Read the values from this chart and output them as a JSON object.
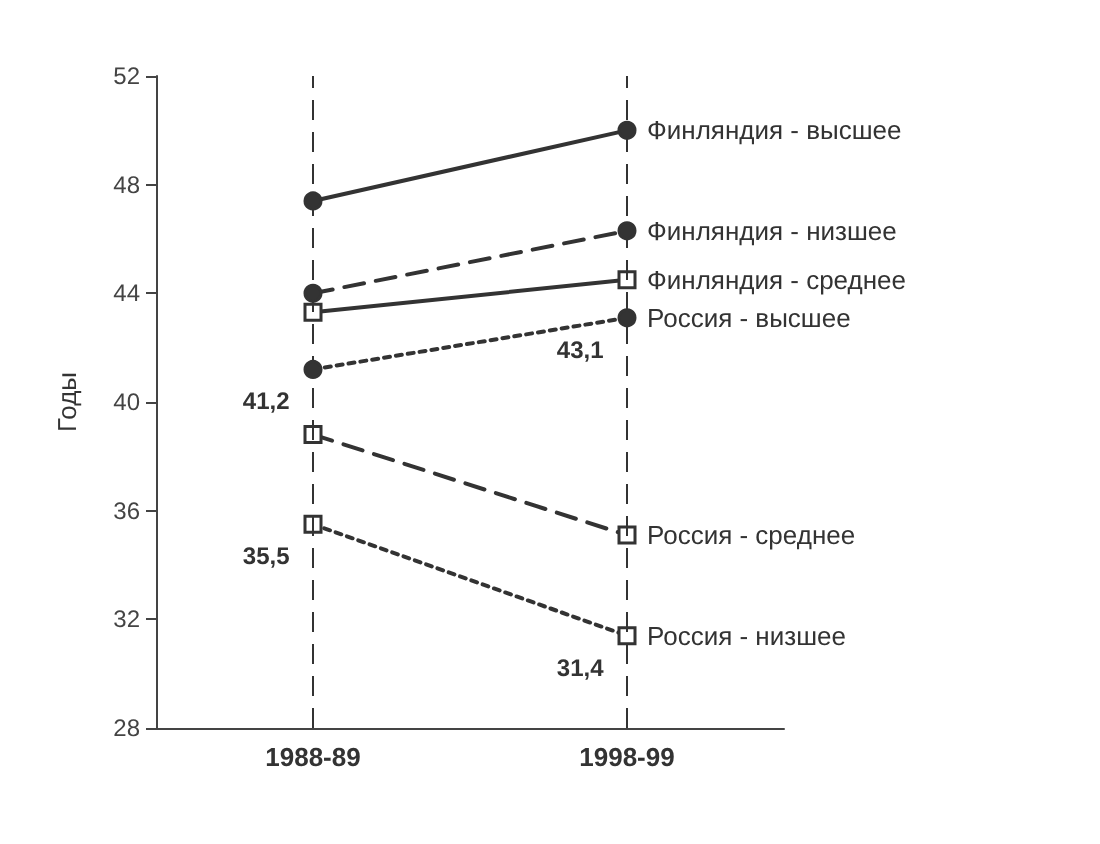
{
  "chart_data": {
    "type": "line",
    "ylabel": "Годы",
    "categories": [
      "1988-89",
      "1998-99"
    ],
    "ylim": [
      28,
      52
    ],
    "yticks": [
      28,
      32,
      36,
      40,
      44,
      48,
      52
    ],
    "grid": false,
    "legend": false,
    "series": [
      {
        "name": "Финляндия - высшее",
        "color": "#333333",
        "values": [
          47.4,
          50.0
        ],
        "marker": "circle",
        "line_style": "solid"
      },
      {
        "name": "Финляндия - низшее",
        "color": "#333333",
        "values": [
          44.0,
          46.3
        ],
        "marker": "circle",
        "line_style": "dashed"
      },
      {
        "name": "Финляндия - среднее",
        "color": "#333333",
        "values": [
          43.3,
          44.5
        ],
        "marker": "square",
        "line_style": "solid"
      },
      {
        "name": "Россия - высшее",
        "color": "#333333",
        "values": [
          41.2,
          43.1
        ],
        "marker": "circle",
        "line_style": "dotted",
        "value_labels": [
          "41,2",
          "43,1"
        ]
      },
      {
        "name": "Россия - среднее",
        "color": "#333333",
        "values": [
          38.8,
          35.1
        ],
        "marker": "square",
        "line_style": "dashed"
      },
      {
        "name": "Россия - низшее",
        "color": "#333333",
        "values": [
          35.5,
          31.4
        ],
        "marker": "square",
        "line_style": "dotted",
        "value_labels": [
          "35,5",
          "31,4"
        ]
      }
    ],
    "ref_lines": [
      {
        "axis": "x",
        "value": "1988-89",
        "color": "#333333",
        "line_style": "dashed"
      },
      {
        "axis": "x",
        "value": "1998-99",
        "color": "#333333",
        "line_style": "dashed"
      }
    ]
  }
}
